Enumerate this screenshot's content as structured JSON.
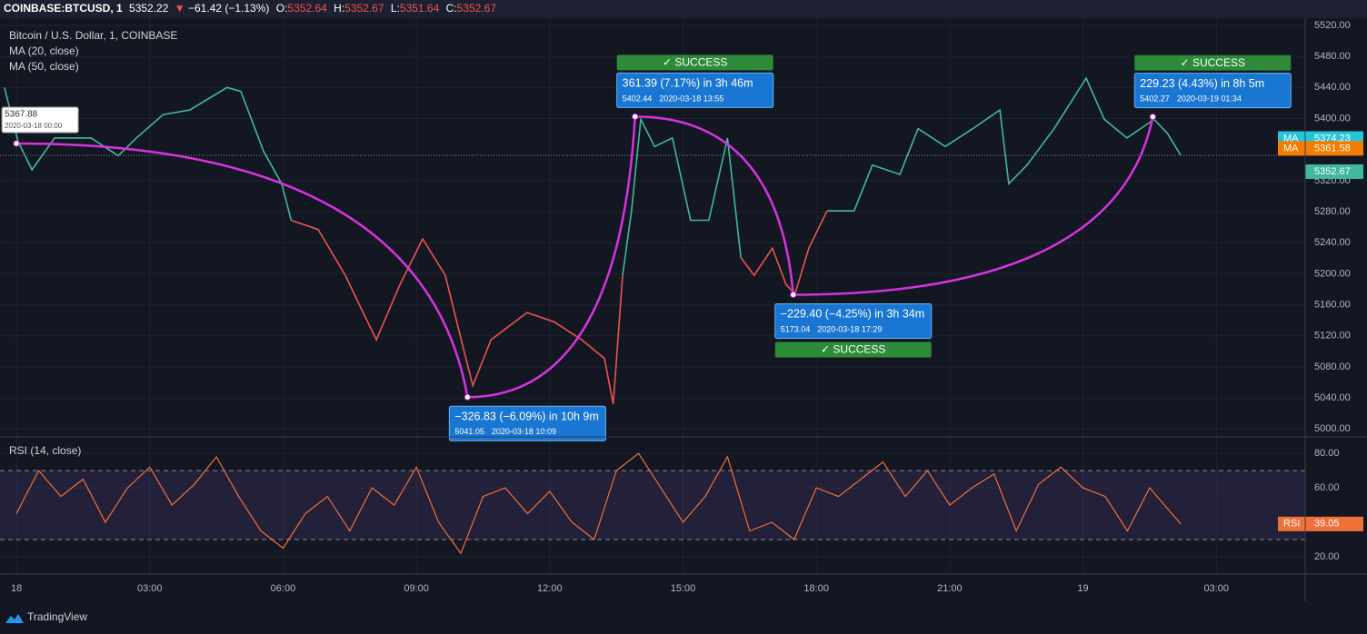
{
  "header": {
    "symbol": "COINBASE:BTCUSD, 1",
    "last": "5352.22",
    "arrow": "▼",
    "change": "−61.42 (−1.13%)",
    "o_label": "O:",
    "o": "5352.64",
    "h_label": "H:",
    "h": "5352.67",
    "l_label": "L:",
    "l": "5351.64",
    "c_label": "C:",
    "c": "5352.67"
  },
  "footer": {
    "brand": "TradingView"
  },
  "chart_data": [
    {
      "type": "line",
      "title": "Bitcoin / U.S. Dollar, 1, COINBASE",
      "indicators": [
        "MA (20, close)",
        "MA (50, close)"
      ],
      "x": [
        -0.27,
        0.04,
        0.35,
        0.86,
        1.68,
        2.29,
        2.7,
        3.3,
        3.9,
        4.74,
        5.05,
        5.56,
        5.97,
        6.18,
        6.79,
        7.4,
        7.8,
        8.1,
        8.63,
        9.14,
        9.65,
        10.06,
        10.27,
        10.68,
        11.49,
        12.1,
        12.72,
        13.23,
        13.43,
        13.64,
        13.84,
        14.05,
        14.36,
        14.76,
        15.17,
        15.58,
        16.0,
        16.3,
        16.6,
        17.01,
        17.32,
        17.52,
        17.83,
        18.24,
        18.85,
        19.26,
        19.88,
        20.29,
        20.9,
        21.52,
        22.13,
        22.33,
        22.74,
        23.35,
        24.07,
        24.48,
        24.99,
        25.6,
        25.9,
        26.2
      ],
      "series": [
        {
          "color": "#3fb8a0",
          "values": [
            5440,
            5370,
            5334,
            5375,
            5375,
            5352,
            5375,
            5405,
            5411,
            5440,
            5435,
            5358,
            5316,
            5269,
            null,
            null,
            null,
            null,
            null,
            null,
            null,
            null,
            null,
            null,
            null,
            null,
            null,
            null,
            null,
            5198,
            5281,
            5399,
            5364,
            5375,
            5269,
            5269,
            5375,
            5221,
            null,
            null,
            null,
            null,
            null,
            5281,
            5281,
            5340,
            5328,
            5387,
            5364,
            5387,
            5411,
            5316,
            5340,
            5387,
            5452,
            5399,
            5375,
            5399,
            5381,
            5352.67
          ]
        },
        {
          "color": "#ef5350",
          "values": [
            null,
            null,
            null,
            null,
            null,
            null,
            null,
            null,
            null,
            null,
            null,
            null,
            null,
            5269,
            5257,
            5198,
            5150,
            5115,
            5186,
            5245,
            5198,
            5103,
            5056,
            5115,
            5150,
            5138,
            5115,
            5091,
            5032,
            5198,
            null,
            null,
            null,
            null,
            null,
            null,
            null,
            5221,
            5198,
            5233,
            5186,
            5174,
            5233,
            5281,
            null,
            null,
            null,
            null,
            null,
            null,
            null,
            null,
            null,
            null,
            null,
            null,
            null,
            null,
            null,
            null
          ]
        }
      ],
      "xlim": [
        -0.37,
        29.0
      ],
      "xticks": [
        {
          "value": 0,
          "label": "18"
        },
        {
          "value": 3,
          "label": "03:00"
        },
        {
          "value": 6,
          "label": "06:00"
        },
        {
          "value": 9,
          "label": "09:00"
        },
        {
          "value": 12,
          "label": "12:00"
        },
        {
          "value": 15,
          "label": "15:00"
        },
        {
          "value": 18,
          "label": "18:00"
        },
        {
          "value": 21,
          "label": "21:00"
        },
        {
          "value": 24,
          "label": "19"
        },
        {
          "value": 27,
          "label": "03:00"
        }
      ],
      "ylim": [
        4991,
        5527
      ],
      "yticks": [
        {
          "value": 5000,
          "label": "5000.00"
        },
        {
          "value": 5040,
          "label": "5040.00"
        },
        {
          "value": 5080,
          "label": "5080.00"
        },
        {
          "value": 5120,
          "label": "5120.00"
        },
        {
          "value": 5160,
          "label": "5160.00"
        },
        {
          "value": 5200,
          "label": "5200.00"
        },
        {
          "value": 5240,
          "label": "5240.00"
        },
        {
          "value": 5280,
          "label": "5280.00"
        },
        {
          "value": 5320,
          "label": "5320.00"
        },
        {
          "value": 5400,
          "label": "5400.00"
        },
        {
          "value": 5440,
          "label": "5440.00"
        },
        {
          "value": 5480,
          "label": "5480.00"
        },
        {
          "value": 5520,
          "label": "5520.00"
        }
      ],
      "grid": true,
      "ma_tags": [
        {
          "label": "MA",
          "value": 5374.23,
          "color": "#26c6da"
        },
        {
          "label": "MA",
          "value": 5361.58,
          "color": "#f57c00"
        }
      ],
      "pattern": {
        "color": "#d633e0",
        "x": [
          0,
          10.15,
          13.92,
          17.48,
          25.57
        ],
        "values": [
          5367.88,
          5041.05,
          5402.44,
          5173.04,
          5402.27
        ],
        "times": [
          "2020-03-18  00:00",
          "2020-03-18  10:09",
          "2020-03-18  13:55",
          "2020-03-18  17:29",
          "2020-03-19  01:34"
        ]
      },
      "annotations": [
        {
          "change": "−326.83 (−6.09%) in 10h 9m"
        },
        {
          "change": "361.39 (7.17%) in 3h 46m",
          "status": "✓ SUCCESS"
        },
        {
          "change": "−229.40 (−4.25%) in 3h 34m",
          "status": "✓ SUCCESS"
        },
        {
          "change": "229.23 (4.43%) in 8h 5m",
          "status": "✓ SUCCESS"
        }
      ]
    },
    {
      "type": "line",
      "title": "RSI (14, close)",
      "color": "#f0703a",
      "value_tag": "RSI",
      "x": [
        0,
        0.5,
        1,
        1.5,
        2,
        2.5,
        3,
        3.5,
        4,
        4.5,
        5,
        5.5,
        6,
        6.5,
        7,
        7.5,
        8,
        8.5,
        9,
        9.5,
        10,
        10.5,
        11,
        11.5,
        12,
        12.5,
        13,
        13.5,
        14,
        14.5,
        15,
        15.5,
        16,
        16.5,
        17,
        17.5,
        18,
        18.5,
        19,
        19.5,
        20,
        20.5,
        21,
        21.5,
        22,
        22.5,
        23,
        23.5,
        24,
        24.5,
        25,
        25.5,
        26,
        26.2
      ],
      "values": [
        45,
        70,
        55,
        65,
        40,
        60,
        72,
        50,
        62,
        78,
        55,
        35,
        25,
        45,
        55,
        35,
        60,
        50,
        72,
        40,
        22,
        55,
        60,
        45,
        58,
        40,
        30,
        70,
        80,
        60,
        40,
        55,
        78,
        35,
        40,
        30,
        60,
        55,
        65,
        75,
        55,
        70,
        50,
        60,
        68,
        35,
        62,
        72,
        60,
        55,
        35,
        60,
        45,
        39.05
      ],
      "ylim": [
        10,
        89
      ],
      "yticks": [
        {
          "value": 20,
          "label": "20.00"
        },
        {
          "value": 60,
          "label": "60.00"
        },
        {
          "value": 80,
          "label": "80.00"
        }
      ],
      "band": [
        30,
        70
      ]
    }
  ]
}
